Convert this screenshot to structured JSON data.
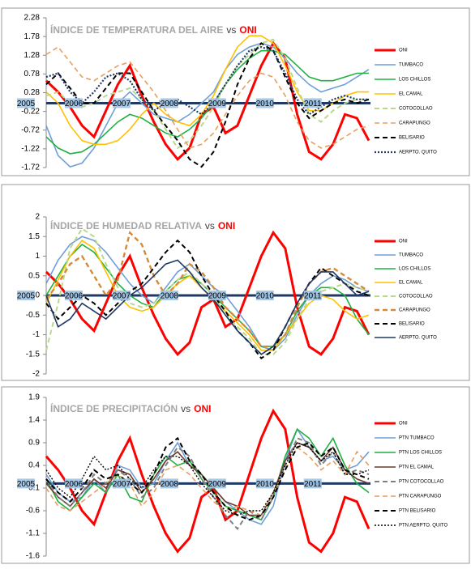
{
  "chart_data": [
    {
      "type": "line",
      "title": "ÍNDICE DE TEMPERATURA  DEL AIRE",
      "title_vs": "vs",
      "title_oni": "ONI",
      "categories": [
        "2005",
        null,
        null,
        null,
        "2006",
        null,
        null,
        null,
        "2007",
        null,
        null,
        null,
        "2008",
        null,
        null,
        null,
        "2009",
        null,
        null,
        null,
        "2010",
        null,
        null,
        null,
        "2011",
        null,
        null,
        null
      ],
      "ylim": [
        -1.72,
        2.28
      ],
      "yticks": [
        2.28,
        1.78,
        1.28,
        0.78,
        0.28,
        -0.22,
        -0.72,
        -1.22,
        -1.72
      ],
      "series": [
        {
          "name": "ONI",
          "color": "#ff0000",
          "line_style": "solid",
          "line_width": 3,
          "values": [
            0.6,
            0.3,
            -0.1,
            -0.6,
            -0.9,
            -0.2,
            0.5,
            1.0,
            0.2,
            -0.5,
            -1.1,
            -1.5,
            -1.2,
            -0.3,
            -0.1,
            -0.8,
            -0.6,
            0.2,
            1.0,
            1.6,
            1.2,
            -0.3,
            -1.3,
            -1.5,
            -1.1,
            -0.3,
            -0.4,
            -1.0
          ]
        },
        {
          "name": "TUMBACO",
          "color": "#6f9fd8",
          "line_style": "solid",
          "line_width": 1.6,
          "values": [
            -0.6,
            -1.4,
            -1.7,
            -1.6,
            -1.2,
            -0.6,
            0.0,
            0.3,
            0.0,
            -0.3,
            -0.4,
            -0.5,
            -0.3,
            0.0,
            0.3,
            0.9,
            1.3,
            1.5,
            1.6,
            1.5,
            1.2,
            0.8,
            0.5,
            0.3,
            0.4,
            0.5,
            0.7,
            0.9
          ]
        },
        {
          "name": "LOS CHILLOS",
          "color": "#1fb040",
          "line_style": "solid",
          "line_width": 1.6,
          "values": [
            -0.9,
            -1.2,
            -1.35,
            -1.3,
            -1.1,
            -0.8,
            -0.5,
            -0.3,
            -0.4,
            -0.6,
            -0.8,
            -0.9,
            -0.7,
            -0.4,
            0.0,
            0.5,
            0.9,
            1.2,
            1.4,
            1.4,
            1.3,
            1.0,
            0.7,
            0.6,
            0.6,
            0.7,
            0.8,
            0.8
          ]
        },
        {
          "name": "EL CAMAL",
          "color": "#ffc000",
          "line_style": "solid",
          "line_width": 1.6,
          "values": [
            0.3,
            0.0,
            -0.6,
            -1.0,
            -1.1,
            -1.1,
            -1.0,
            -0.7,
            -0.3,
            0.0,
            -0.3,
            -0.5,
            -0.6,
            -0.3,
            0.2,
            0.9,
            1.5,
            1.8,
            1.8,
            1.6,
            1.0,
            0.3,
            -0.2,
            -0.2,
            0.0,
            0.2,
            0.3,
            0.3
          ]
        },
        {
          "name": "COTOCOLLAO",
          "color": "#b8d98a",
          "line_style": "dashed",
          "line_width": 2,
          "values": [
            0.2,
            0.3,
            0.0,
            -0.1,
            0.0,
            0.2,
            0.3,
            0.4,
            0.1,
            -0.2,
            -0.7,
            -1.2,
            -1.0,
            -0.6,
            -0.1,
            0.5,
            1.0,
            1.3,
            1.6,
            1.7,
            1.2,
            0.4,
            -0.3,
            -0.5,
            -0.2,
            0.0,
            0.1,
            0.1
          ]
        },
        {
          "name": "CARAPUNGO",
          "color": "#e3a060",
          "line_style": "dashed",
          "line_width": 1.6,
          "values": [
            1.3,
            1.5,
            1.1,
            0.7,
            0.6,
            0.8,
            1.0,
            1.1,
            0.7,
            0.3,
            -0.2,
            -0.7,
            -1.2,
            -1.1,
            -0.8,
            -0.3,
            0.2,
            0.6,
            0.8,
            0.7,
            0.2,
            -0.5,
            -1.0,
            -1.2,
            -1.1,
            -0.9,
            -0.7,
            -0.6
          ]
        },
        {
          "name": "BELISARIO",
          "color": "#000000",
          "line_style": "dashed",
          "line_width": 2,
          "values": [
            0.5,
            0.8,
            0.4,
            0.0,
            0.0,
            0.4,
            0.8,
            0.8,
            0.3,
            -0.2,
            -0.6,
            -1.0,
            -1.5,
            -1.7,
            -1.3,
            -0.5,
            0.5,
            1.2,
            1.6,
            1.4,
            0.7,
            0.0,
            -0.4,
            -0.2,
            0.0,
            0.1,
            0.0,
            0.1
          ]
        },
        {
          "name": "AERPTO. QUITO",
          "color": "#1f3864",
          "line_style": "dotted",
          "line_width": 2.2,
          "values": [
            0.7,
            0.8,
            0.3,
            0.0,
            0.3,
            0.7,
            0.8,
            0.6,
            0.1,
            -0.2,
            0.0,
            0.1,
            -0.1,
            -0.3,
            0.0,
            0.5,
            1.0,
            1.4,
            1.5,
            1.4,
            0.8,
            0.1,
            -0.3,
            -0.1,
            0.1,
            0.2,
            0.1,
            0.1
          ]
        }
      ]
    },
    {
      "type": "line",
      "title": "ÍNDICE DE HUMEDAD RELATIVA",
      "title_vs": "vs",
      "title_oni": "ONI",
      "categories": [
        "2005",
        null,
        null,
        null,
        "2006",
        null,
        null,
        null,
        "2007",
        null,
        null,
        null,
        "2008",
        null,
        null,
        null,
        "2009",
        null,
        null,
        null,
        "2010",
        null,
        null,
        null,
        "2011",
        null,
        null,
        null
      ],
      "ylim": [
        -2,
        2
      ],
      "yticks": [
        2,
        1.5,
        1,
        0.5,
        0,
        -0.5,
        -1,
        -1.5,
        -2
      ],
      "series": [
        {
          "name": "ONI",
          "color": "#ff0000",
          "line_style": "solid",
          "line_width": 3,
          "values": [
            0.6,
            0.3,
            -0.1,
            -0.6,
            -0.9,
            -0.2,
            0.5,
            1.0,
            0.2,
            -0.5,
            -1.1,
            -1.5,
            -1.2,
            -0.3,
            -0.1,
            -0.8,
            -0.6,
            0.2,
            1.0,
            1.6,
            1.2,
            -0.3,
            -1.3,
            -1.5,
            -1.1,
            -0.3,
            -0.4,
            -1.0
          ]
        },
        {
          "name": "TUMBACO",
          "color": "#6f9fd8",
          "line_style": "solid",
          "line_width": 1.6,
          "values": [
            0.3,
            0.9,
            1.3,
            1.5,
            1.4,
            1.1,
            0.7,
            0.3,
            0.0,
            -0.2,
            0.2,
            0.6,
            0.8,
            0.5,
            0.2,
            0.0,
            -0.4,
            -0.8,
            -1.3,
            -1.4,
            -1.1,
            -0.5,
            0.0,
            0.3,
            0.5,
            0.4,
            0.2,
            0.1
          ]
        },
        {
          "name": "LOS CHILLOS",
          "color": "#1fb040",
          "line_style": "solid",
          "line_width": 1.6,
          "values": [
            0.0,
            0.5,
            1.0,
            1.3,
            1.1,
            0.7,
            0.3,
            0.0,
            -0.2,
            -0.3,
            0.1,
            0.4,
            0.5,
            0.3,
            0.0,
            -0.3,
            -0.6,
            -0.9,
            -1.3,
            -1.3,
            -1.0,
            -0.4,
            0.0,
            0.2,
            0.2,
            0.0,
            -0.6,
            -1.0
          ]
        },
        {
          "name": "EL CAMAL",
          "color": "#ffc000",
          "line_style": "solid",
          "line_width": 1.6,
          "values": [
            -0.2,
            0.4,
            1.0,
            1.4,
            1.2,
            0.6,
            0.0,
            -0.3,
            -0.4,
            -0.3,
            0.0,
            0.3,
            0.5,
            0.2,
            -0.1,
            -0.4,
            -0.7,
            -1.0,
            -1.4,
            -1.4,
            -1.0,
            -0.6,
            -0.2,
            0.0,
            -0.1,
            -0.4,
            -0.6,
            -0.5
          ]
        },
        {
          "name": "COTOCOLLAO",
          "color": "#b8d98a",
          "line_style": "dashed",
          "line_width": 2,
          "values": [
            -1.4,
            -0.2,
            1.2,
            1.7,
            1.5,
            0.8,
            0.2,
            -0.2,
            -0.3,
            -0.2,
            0.1,
            0.4,
            0.6,
            0.3,
            0.0,
            -0.5,
            -0.8,
            -1.1,
            -1.5,
            -1.5,
            -1.2,
            -0.6,
            -0.1,
            0.1,
            0.2,
            0.3,
            0.2,
            0.1
          ]
        },
        {
          "name": "CARAPUNGO",
          "color": "#d58a3a",
          "line_style": "dashed",
          "line_width": 2.4,
          "values": [
            -0.1,
            0.3,
            0.8,
            1.0,
            0.5,
            0.0,
            0.4,
            1.6,
            1.3,
            0.5,
            0.0,
            0.3,
            0.8,
            0.6,
            0.2,
            -0.3,
            -0.6,
            -0.9,
            -1.3,
            -1.3,
            -1.0,
            -0.3,
            0.3,
            0.6,
            0.7,
            0.5,
            0.3,
            0.1
          ]
        },
        {
          "name": "BELISARIO",
          "color": "#000000",
          "line_style": "dashed",
          "line_width": 2,
          "values": [
            -0.2,
            -0.6,
            -0.3,
            0.0,
            -0.2,
            -0.5,
            -0.2,
            0.1,
            0.3,
            0.7,
            1.1,
            1.4,
            1.1,
            0.5,
            0.0,
            -0.4,
            -0.9,
            -1.2,
            -1.6,
            -1.4,
            -0.8,
            -0.2,
            0.3,
            0.7,
            0.5,
            0.3,
            0.1,
            0.0
          ]
        },
        {
          "name": "AERPTO. QUITO",
          "color": "#1f3864",
          "line_style": "solid",
          "line_width": 1.6,
          "values": [
            0.0,
            -0.8,
            -0.6,
            -0.2,
            -0.4,
            -0.6,
            -0.3,
            0.0,
            0.2,
            0.5,
            0.8,
            0.9,
            0.6,
            0.2,
            -0.1,
            -0.5,
            -0.9,
            -1.2,
            -1.5,
            -1.3,
            -0.8,
            -0.2,
            0.3,
            0.6,
            0.6,
            0.3,
            0.0,
            0.1
          ]
        }
      ]
    },
    {
      "type": "line",
      "title": "ÍNDICE DE PRECIPITACIÓN",
      "title_vs": "vs",
      "title_oni": "ONI",
      "categories": [
        "2005",
        null,
        null,
        null,
        "2006",
        null,
        null,
        null,
        "2007",
        null,
        null,
        null,
        "2008",
        null,
        null,
        null,
        "2009",
        null,
        null,
        null,
        "2010",
        null,
        null,
        null,
        "2011",
        null,
        null,
        null
      ],
      "ylim": [
        -1.6,
        1.9
      ],
      "yticks": [
        1.9,
        1.4,
        0.9,
        0.4,
        -0.1,
        -0.6,
        -1.1,
        -1.6
      ],
      "series": [
        {
          "name": "ONI",
          "color": "#ff0000",
          "line_style": "solid",
          "line_width": 3,
          "values": [
            0.6,
            0.3,
            -0.1,
            -0.6,
            -0.9,
            -0.2,
            0.5,
            1.0,
            0.2,
            -0.5,
            -1.1,
            -1.5,
            -1.2,
            -0.3,
            -0.1,
            -0.8,
            -0.6,
            0.2,
            1.0,
            1.6,
            1.2,
            -0.3,
            -1.3,
            -1.5,
            -1.1,
            -0.3,
            -0.4,
            -1.0
          ]
        },
        {
          "name": "PTN TUMBACO",
          "color": "#6f9fd8",
          "line_style": "solid",
          "line_width": 1.6,
          "values": [
            0.2,
            -0.2,
            -0.4,
            -0.3,
            0.1,
            -0.2,
            0.4,
            0.3,
            -0.1,
            0.0,
            0.5,
            0.9,
            0.4,
            0.2,
            -0.1,
            -0.4,
            -0.6,
            -0.8,
            -0.9,
            -0.5,
            0.5,
            1.2,
            0.8,
            0.5,
            0.6,
            0.3,
            0.4,
            0.7
          ]
        },
        {
          "name": "PTN LOS CHILLOS",
          "color": "#1fb040",
          "line_style": "solid",
          "line_width": 1.6,
          "values": [
            0.1,
            -0.4,
            -0.6,
            -0.3,
            0.0,
            -0.2,
            0.2,
            -0.3,
            -0.4,
            0.2,
            0.6,
            0.4,
            0.5,
            0.1,
            -0.2,
            -0.5,
            -0.6,
            -0.7,
            -0.8,
            -0.3,
            0.6,
            1.2,
            1.0,
            0.6,
            1.0,
            0.4,
            0.0,
            -0.2
          ]
        },
        {
          "name": "PTN EL CAMAL",
          "color": "#6b3a2a",
          "line_style": "solid",
          "line_width": 1.6,
          "values": [
            0.0,
            -0.3,
            -0.5,
            -0.2,
            0.1,
            -0.1,
            0.3,
            0.2,
            -0.2,
            0.1,
            0.5,
            0.7,
            0.4,
            0.2,
            -0.1,
            -0.4,
            -0.5,
            -0.7,
            -0.7,
            -0.2,
            0.5,
            0.9,
            0.8,
            0.5,
            0.8,
            0.3,
            0.1,
            0.0
          ]
        },
        {
          "name": "PTN COTOCOLLAO",
          "color": "#7f7f7f",
          "line_style": "dashed",
          "line_width": 2,
          "values": [
            0.1,
            -0.3,
            -0.5,
            -0.2,
            0.2,
            0.0,
            0.3,
            0.1,
            -0.3,
            -0.1,
            0.4,
            0.8,
            0.6,
            0.1,
            -0.3,
            -0.7,
            -1.0,
            -0.6,
            -0.8,
            -0.3,
            0.4,
            1.0,
            0.9,
            0.4,
            0.7,
            0.2,
            0.3,
            0.2
          ]
        },
        {
          "name": "PTN CARAPUNGO",
          "color": "#e3a060",
          "line_style": "dashed",
          "line_width": 1.6,
          "values": [
            -0.1,
            -0.5,
            -0.6,
            -0.4,
            -0.2,
            0.0,
            0.2,
            0.0,
            -0.5,
            -0.2,
            0.3,
            0.4,
            0.2,
            -0.1,
            -0.4,
            -0.6,
            -0.5,
            -0.6,
            -0.7,
            -0.2,
            0.3,
            0.8,
            0.6,
            0.3,
            0.5,
            0.2,
            0.7,
            0.4
          ]
        },
        {
          "name": "PTN BELISARIO",
          "color": "#000000",
          "line_style": "dashed",
          "line_width": 2,
          "values": [
            0.1,
            -0.2,
            -0.4,
            -0.1,
            0.3,
            0.1,
            0.2,
            0.0,
            -0.2,
            0.2,
            0.8,
            1.0,
            0.5,
            0.2,
            -0.2,
            -0.5,
            -0.7,
            -0.8,
            -0.7,
            -0.3,
            0.3,
            0.8,
            0.9,
            0.6,
            0.8,
            0.3,
            0.2,
            0.1
          ]
        },
        {
          "name": "PTN AERPTO. QUITO",
          "color": "#000000",
          "line_style": "dotted",
          "line_width": 1.4,
          "values": [
            0.3,
            -0.1,
            -0.3,
            0.1,
            0.6,
            0.3,
            0.4,
            0.1,
            -0.1,
            0.3,
            0.6,
            0.6,
            0.4,
            0.0,
            -0.3,
            -0.6,
            -0.7,
            -0.6,
            -0.6,
            -0.2,
            0.4,
            0.9,
            0.8,
            0.5,
            0.7,
            0.2,
            0.2,
            0.3
          ]
        }
      ]
    }
  ]
}
